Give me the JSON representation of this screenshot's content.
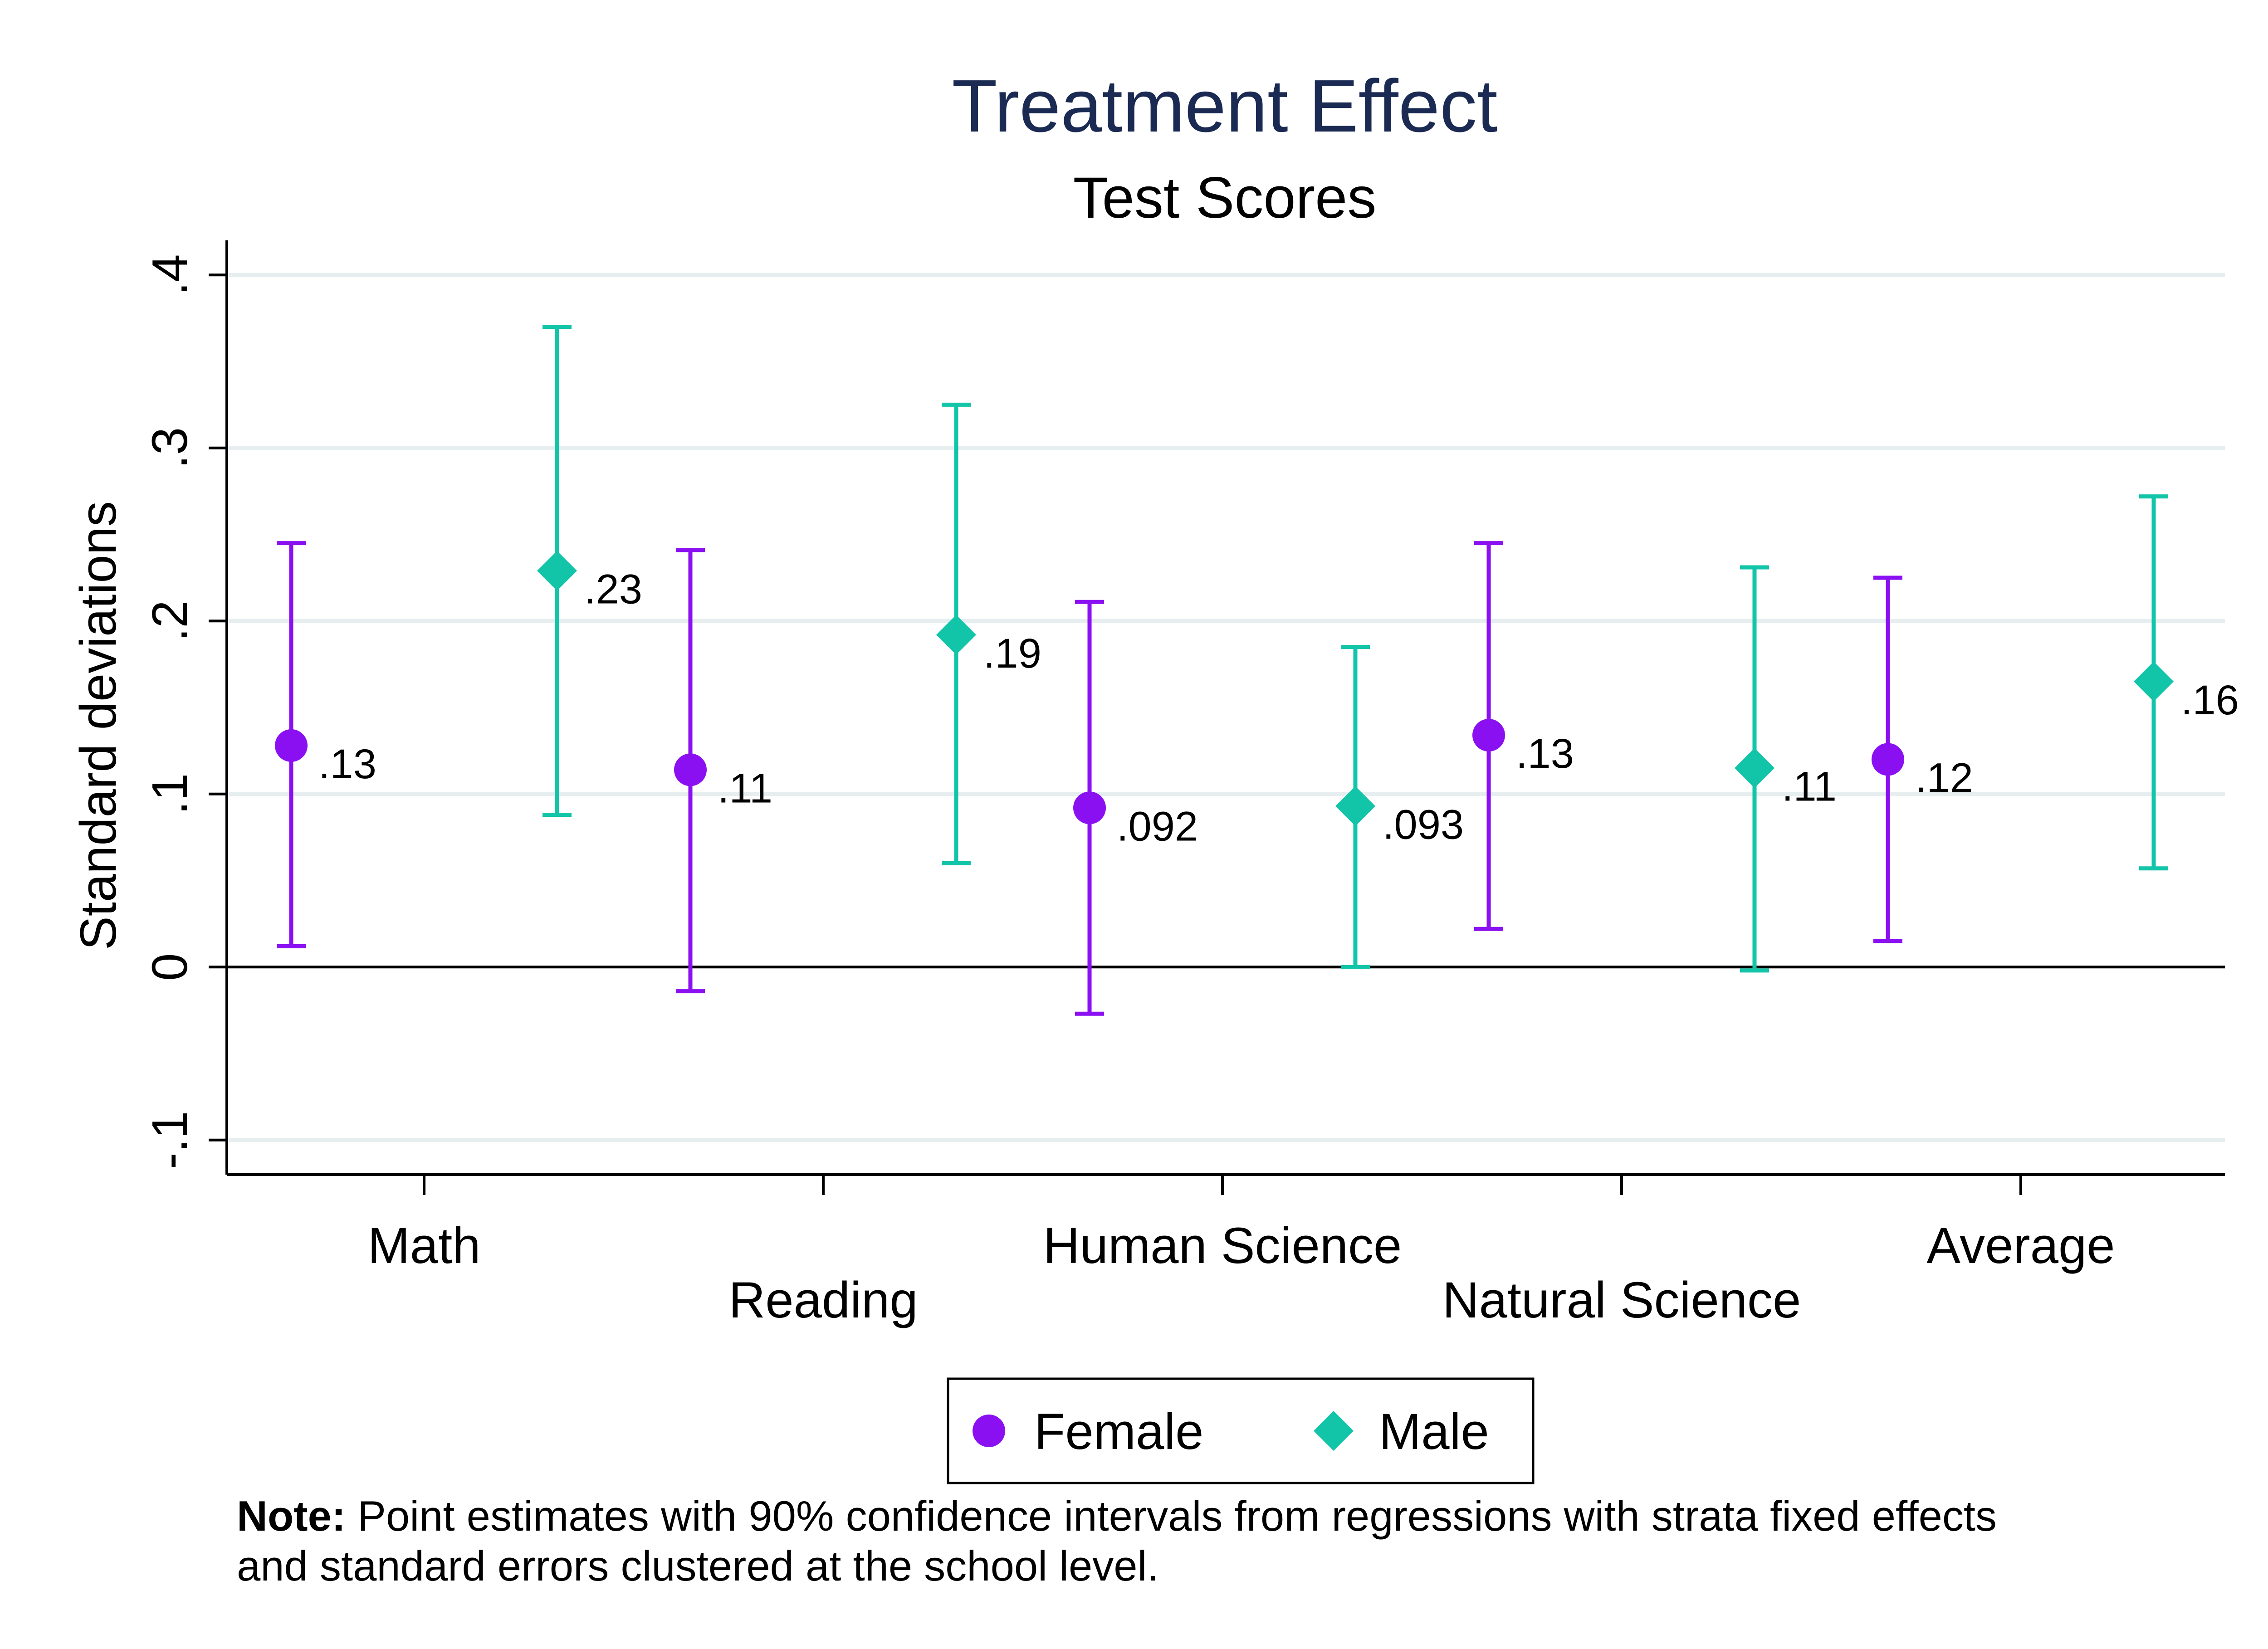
{
  "chart_data": {
    "type": "scatter",
    "title": "Treatment Effect",
    "subtitle": "Test Scores",
    "ylabel": "Standard deviations",
    "xlabel": "",
    "ylim": [
      -0.12,
      0.42
    ],
    "yticks": [
      {
        "value": -0.1,
        "label": "-.1"
      },
      {
        "value": 0,
        "label": "0"
      },
      {
        "value": 0.1,
        "label": ".1"
      },
      {
        "value": 0.2,
        "label": ".2"
      },
      {
        "value": 0.3,
        "label": ".3"
      },
      {
        "value": 0.4,
        "label": ".4"
      }
    ],
    "categories": [
      "Math",
      "Reading",
      "Human Science",
      "Natural Science",
      "Average"
    ],
    "grid": true,
    "legend_position": "bottom",
    "series": [
      {
        "name": "Female",
        "marker": "circle",
        "color": "#8a10f2",
        "values": [
          0.128,
          0.114,
          0.092,
          0.134,
          0.12
        ],
        "labels": [
          ".13",
          ".11",
          ".092",
          ".13",
          ".12"
        ],
        "ci_low": [
          0.012,
          -0.014,
          -0.027,
          0.022,
          0.015
        ],
        "ci_high": [
          0.245,
          0.241,
          0.211,
          0.245,
          0.225
        ]
      },
      {
        "name": "Male",
        "marker": "diamond",
        "color": "#12c4a8",
        "values": [
          0.229,
          0.192,
          0.093,
          0.115,
          0.165
        ],
        "labels": [
          ".23",
          ".19",
          ".093",
          ".11",
          ".16"
        ],
        "ci_low": [
          0.088,
          0.06,
          0.0,
          -0.002,
          0.057
        ],
        "ci_high": [
          0.37,
          0.325,
          0.185,
          0.231,
          0.272
        ]
      }
    ]
  },
  "note": {
    "bold": "Note:",
    "line1": " Point estimates with 90% confidence intervals from regressions with strata fixed effects",
    "line2": "and standard errors clustered at the school level."
  }
}
